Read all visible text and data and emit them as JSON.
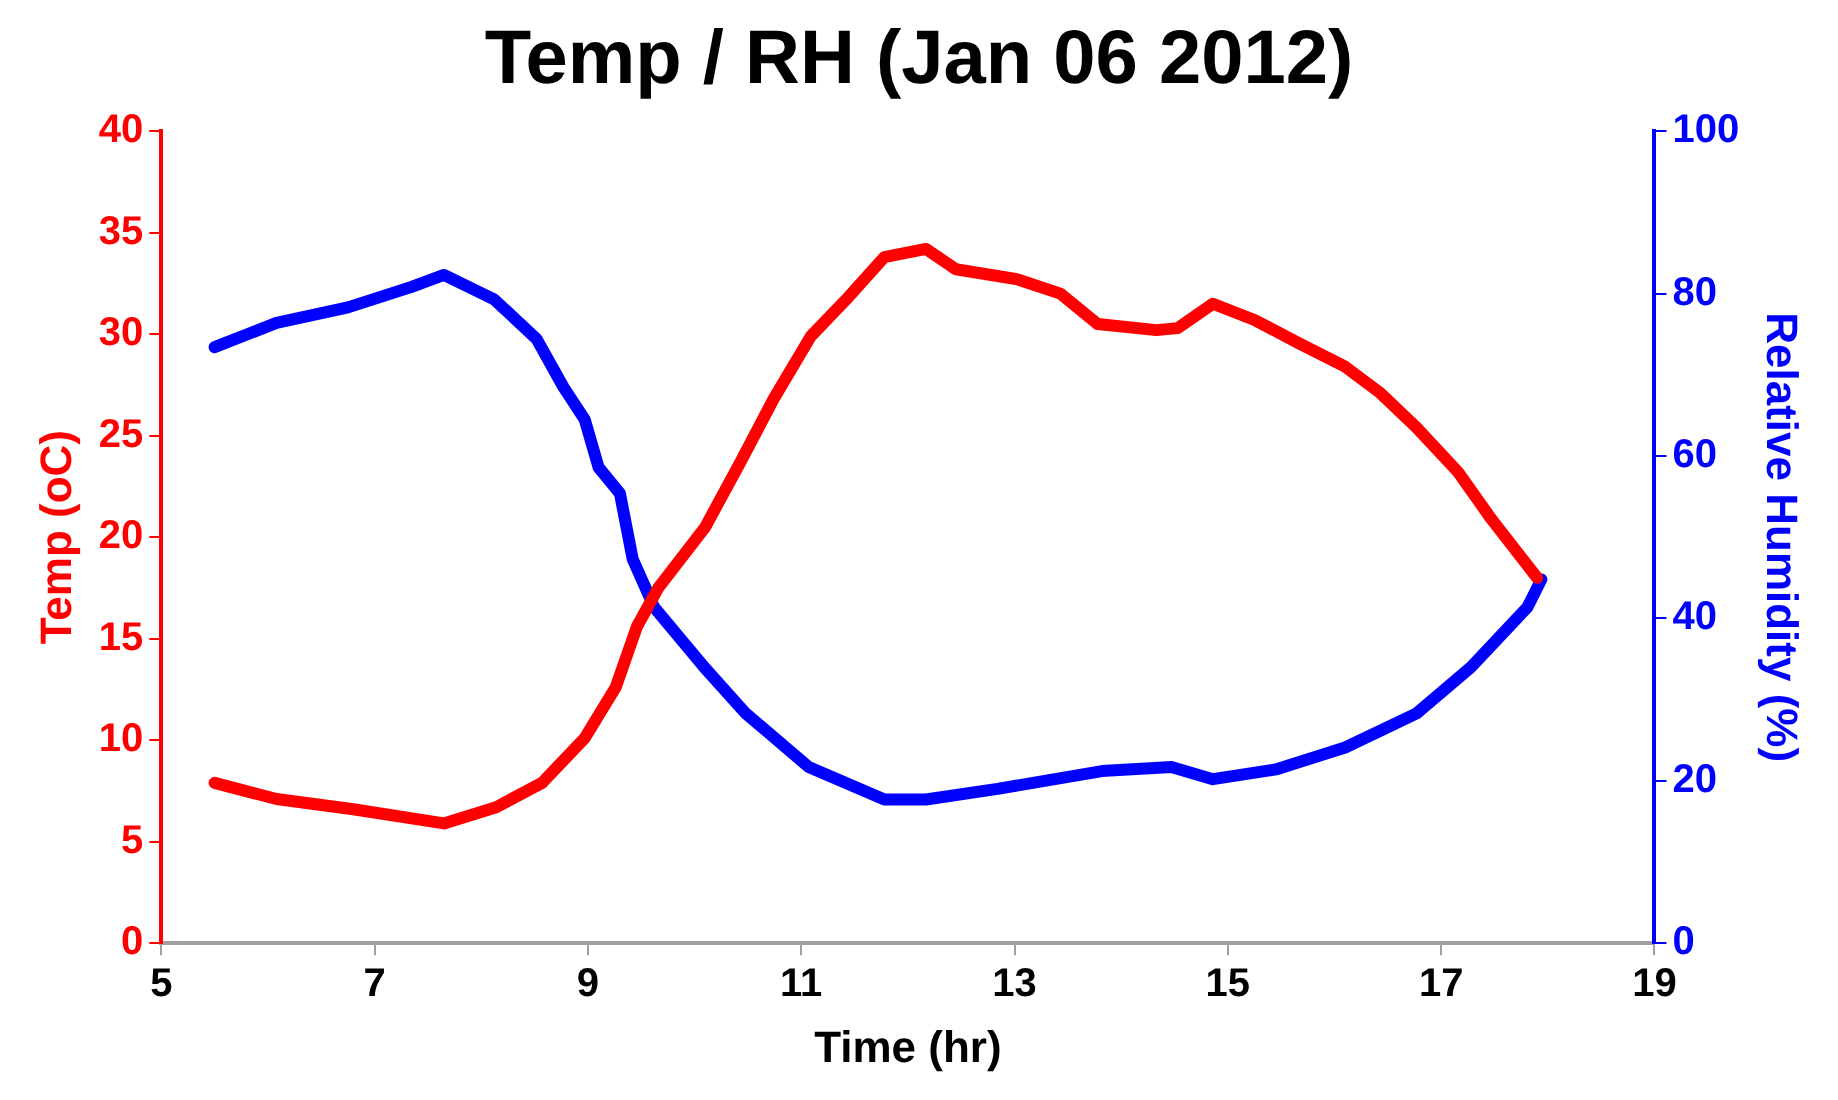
{
  "chart_data": {
    "type": "line",
    "title": "Temp / RH (Jan 06 2012)",
    "xlabel": "Time (hr)",
    "ylabel": "Temp (oC)",
    "y2label": "Relative Humidity (%)",
    "xlim": [
      5,
      19
    ],
    "xticks": [
      5,
      7,
      9,
      11,
      13,
      15,
      17,
      19
    ],
    "ylim": [
      0,
      40
    ],
    "yticks": [
      0,
      5,
      10,
      15,
      20,
      25,
      30,
      35,
      40
    ],
    "y2lim": [
      0,
      100
    ],
    "y2ticks": [
      0,
      20,
      40,
      60,
      80,
      100
    ],
    "series": [
      {
        "color": "#ff0000",
        "x": [
          5.5,
          6.08,
          6.8,
          7.65,
          8.14,
          8.57,
          8.97,
          9.26,
          9.46,
          9.66,
          10.1,
          10.44,
          10.74,
          11.09,
          11.42,
          11.78,
          12.17,
          12.45,
          13.03,
          13.43,
          13.78,
          14.33,
          14.53,
          14.86,
          15.25,
          15.65,
          16.1,
          16.43,
          16.77,
          17.16,
          17.47,
          17.9
        ],
        "values": [
          7.9,
          7.1,
          6.6,
          5.9,
          6.7,
          7.9,
          10.1,
          12.6,
          15.6,
          17.5,
          20.5,
          23.8,
          26.8,
          29.9,
          31.7,
          33.8,
          34.2,
          33.2,
          32.7,
          32.0,
          30.5,
          30.2,
          30.3,
          31.5,
          30.7,
          29.6,
          28.4,
          27.1,
          25.4,
          23.2,
          20.9,
          18.0
        ]
      },
      {
        "color": "#0000ff",
        "axis": "y2",
        "x": [
          5.5,
          6.08,
          6.75,
          7.34,
          7.65,
          8.12,
          8.52,
          8.77,
          8.97,
          9.1,
          9.3,
          9.42,
          9.62,
          10.09,
          10.48,
          11.07,
          11.78,
          12.17,
          12.84,
          13.82,
          14.47,
          14.86,
          15.45,
          16.1,
          16.77,
          17.28,
          17.81,
          17.94
        ],
        "values": [
          73.4,
          76.4,
          78.3,
          80.8,
          82.3,
          79.3,
          74.4,
          68.5,
          64.5,
          58.6,
          55.4,
          47.3,
          41.4,
          34.0,
          28.3,
          21.7,
          17.7,
          17.7,
          19.0,
          21.2,
          21.7,
          20.2,
          21.4,
          24.1,
          28.3,
          34.0,
          41.4,
          44.8
        ]
      }
    ]
  }
}
